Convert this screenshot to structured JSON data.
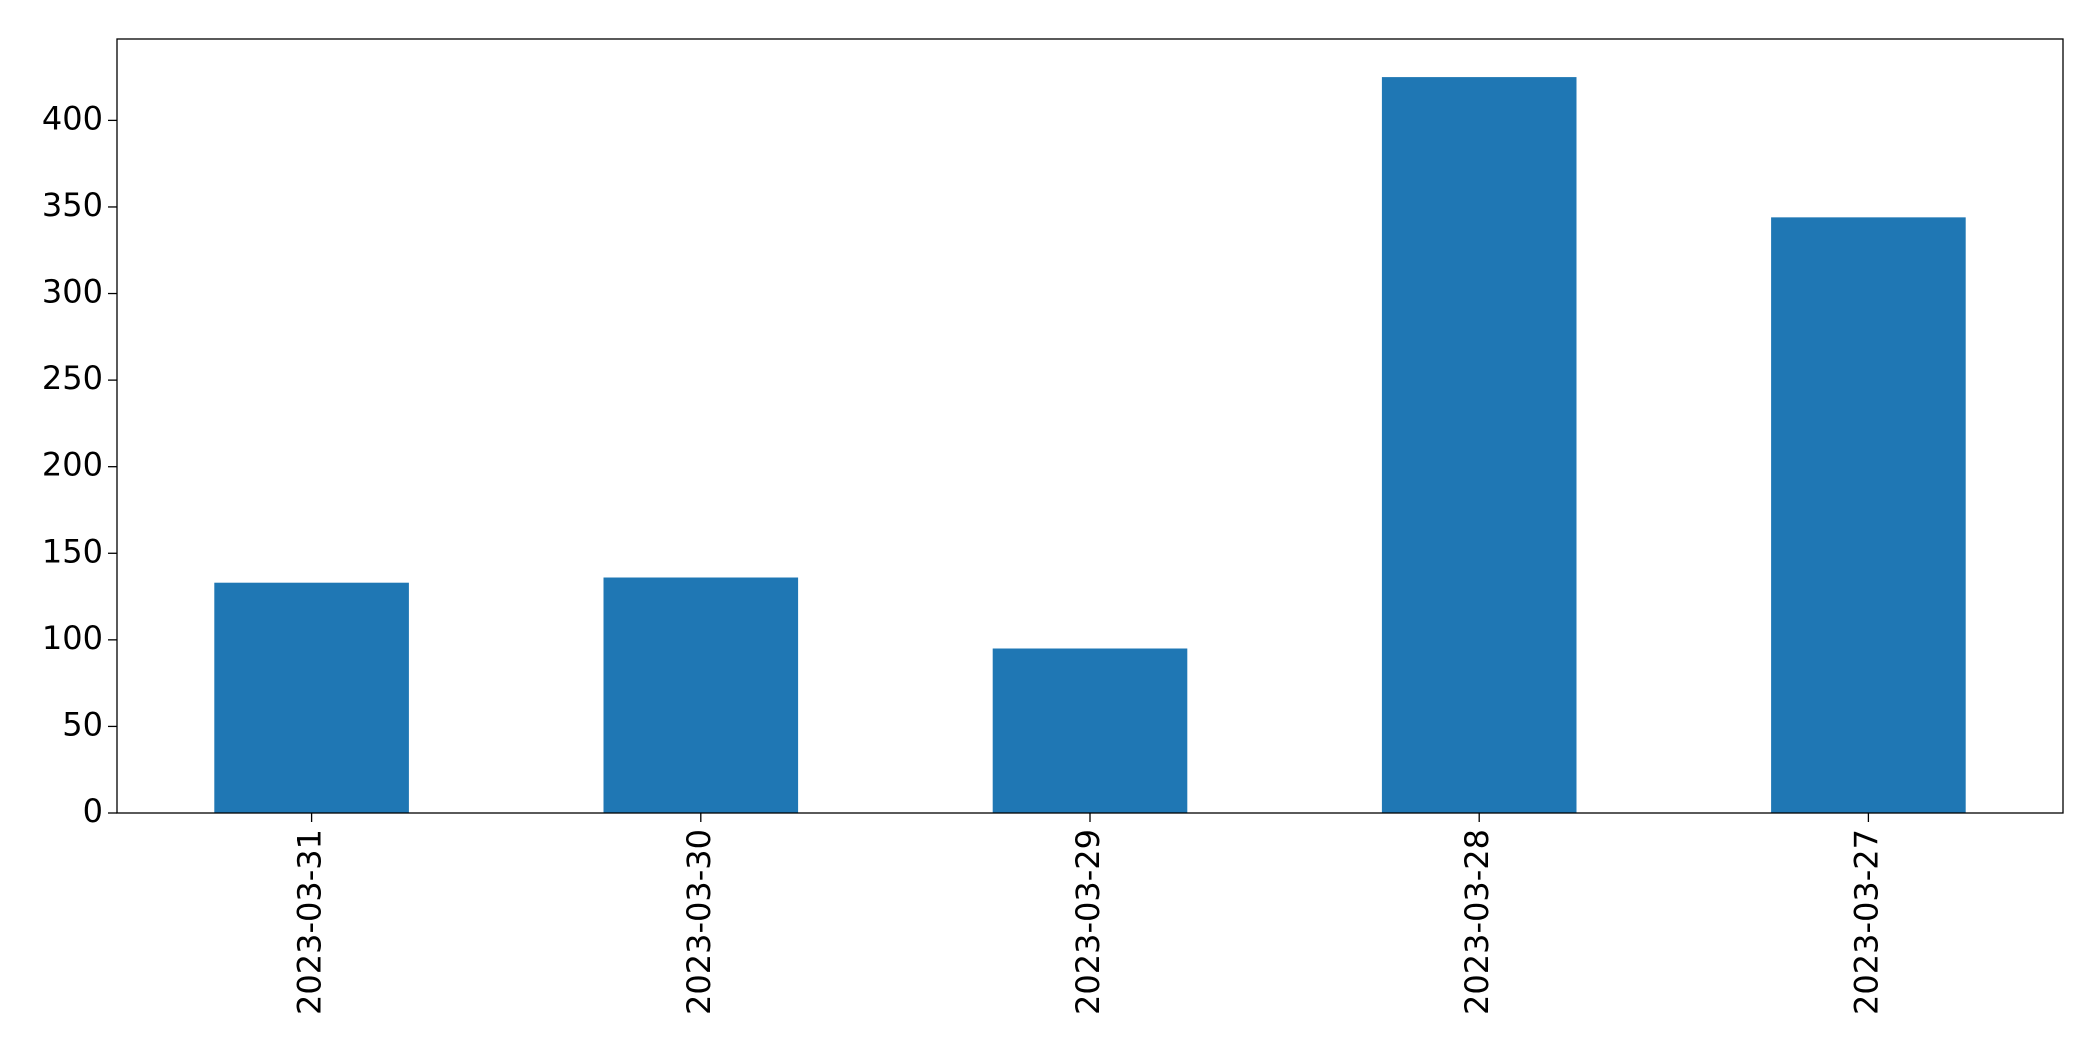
{
  "chart_data": {
    "type": "bar",
    "categories": [
      "2023-03-31",
      "2023-03-30",
      "2023-03-29",
      "2023-03-28",
      "2023-03-27"
    ],
    "values": [
      133,
      136,
      95,
      425,
      344
    ],
    "color": "#1f77b4",
    "ylim": [
      0,
      447
    ],
    "yticks": [
      0,
      50,
      100,
      150,
      200,
      250,
      300,
      350,
      400
    ],
    "grid": false
  }
}
